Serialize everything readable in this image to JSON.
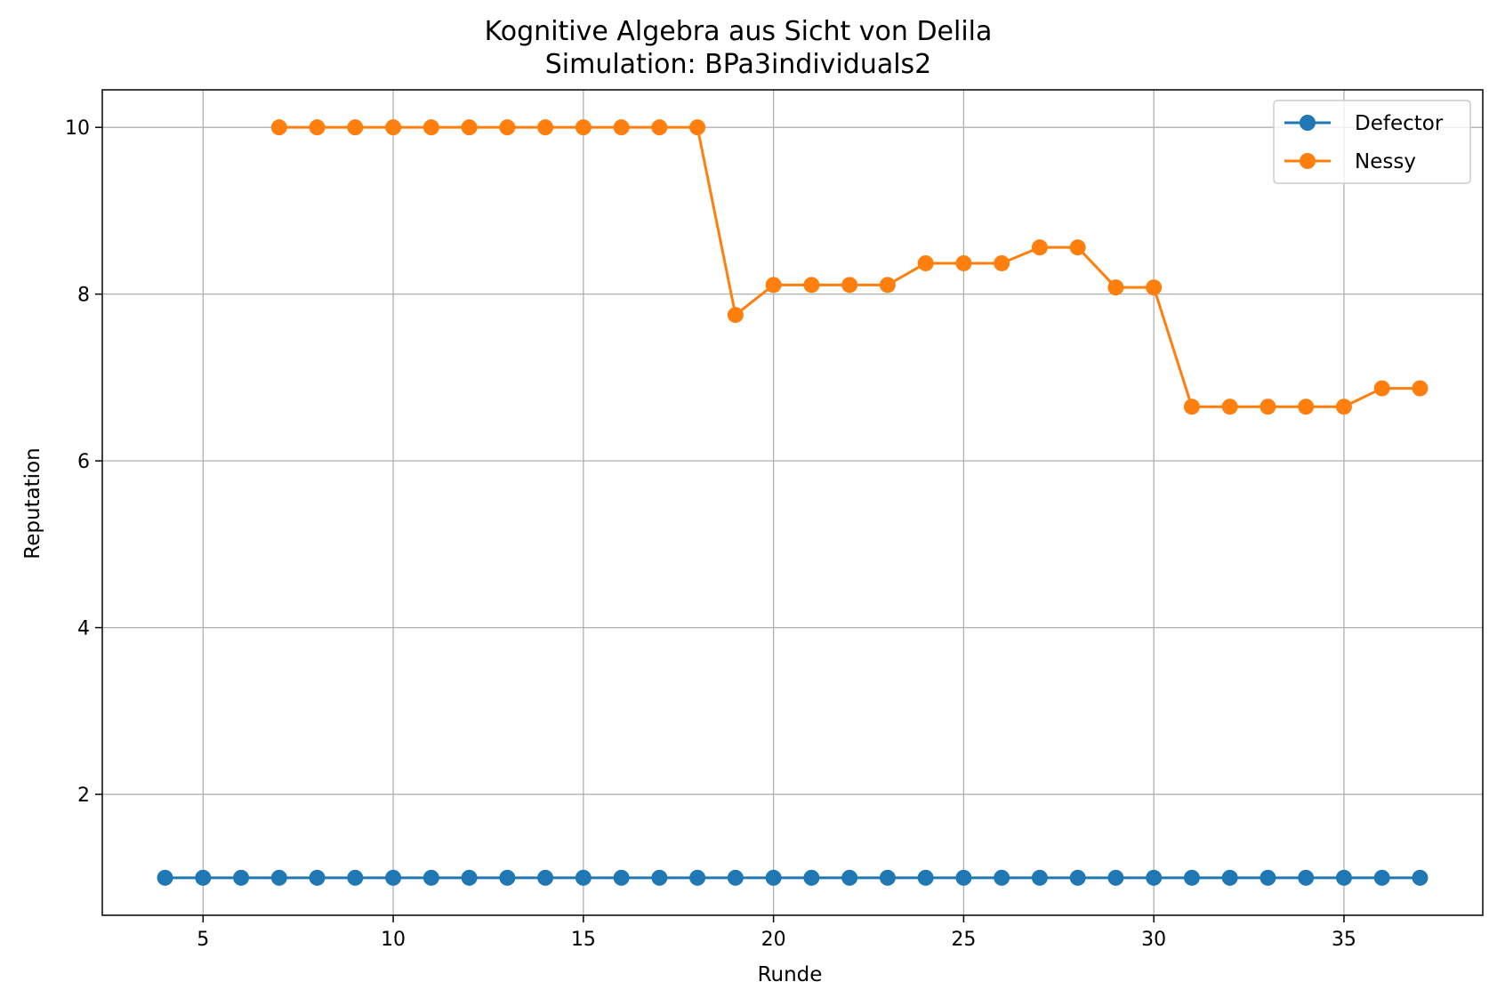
{
  "chart_data": {
    "type": "line",
    "title": "Kognitive Algebra aus Sicht von Delila",
    "subtitle": "Simulation: BPa3individuals2",
    "xlabel": "Runde",
    "ylabel": "Reputation",
    "xlim": [
      2.35,
      38.65
    ],
    "ylim": [
      0.55,
      10.45
    ],
    "xticks": [
      5,
      10,
      15,
      20,
      25,
      30,
      35
    ],
    "yticks": [
      2,
      4,
      6,
      8,
      10
    ],
    "grid": true,
    "legend_position": "upper right",
    "series": [
      {
        "name": "Defector",
        "color": "#1f77b4",
        "marker": "circle",
        "x": [
          4,
          5,
          6,
          7,
          8,
          9,
          10,
          11,
          12,
          13,
          14,
          15,
          16,
          17,
          18,
          19,
          20,
          21,
          22,
          23,
          24,
          25,
          26,
          27,
          28,
          29,
          30,
          31,
          32,
          33,
          34,
          35,
          36,
          37
        ],
        "y": [
          1,
          1,
          1,
          1,
          1,
          1,
          1,
          1,
          1,
          1,
          1,
          1,
          1,
          1,
          1,
          1,
          1,
          1,
          1,
          1,
          1,
          1,
          1,
          1,
          1,
          1,
          1,
          1,
          1,
          1,
          1,
          1,
          1,
          1
        ]
      },
      {
        "name": "Nessy",
        "color": "#ff7f0e",
        "marker": "circle",
        "x": [
          7,
          8,
          9,
          10,
          11,
          12,
          13,
          14,
          15,
          16,
          17,
          18,
          19,
          20,
          21,
          22,
          23,
          24,
          25,
          26,
          27,
          28,
          29,
          30,
          31,
          32,
          33,
          34,
          35,
          36,
          37
        ],
        "y": [
          10,
          10,
          10,
          10,
          10,
          10,
          10,
          10,
          10,
          10,
          10,
          10,
          7.75,
          8.11,
          8.11,
          8.11,
          8.11,
          8.37,
          8.37,
          8.37,
          8.56,
          8.56,
          8.08,
          8.08,
          6.65,
          6.65,
          6.65,
          6.65,
          6.65,
          6.87,
          6.87
        ]
      }
    ]
  }
}
